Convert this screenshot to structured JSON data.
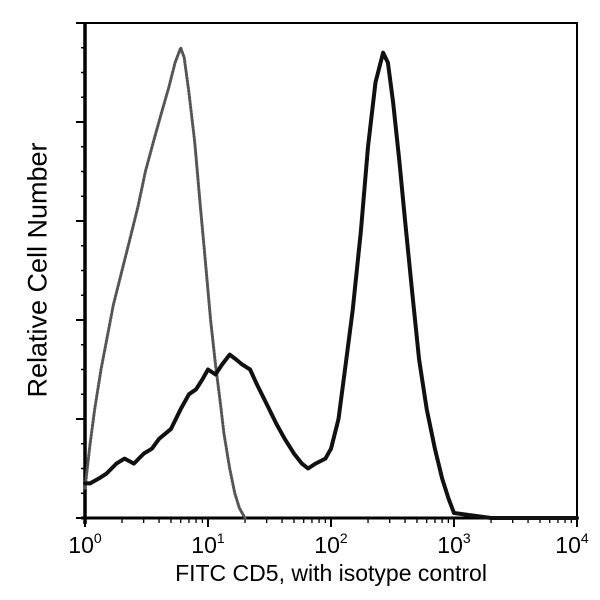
{
  "figure": {
    "ylabel": "Relative Cell Number",
    "xlabel": "FITC CD5, with isotype control",
    "x_ticks": [
      {
        "base": "10",
        "exp": "0"
      },
      {
        "base": "10",
        "exp": "1"
      },
      {
        "base": "10",
        "exp": "2"
      },
      {
        "base": "10",
        "exp": "3"
      },
      {
        "base": "10",
        "exp": "4"
      }
    ],
    "caption_cut": "",
    "colors": {
      "frame": "#000000",
      "cd5_curve": "#111111",
      "isotype_curve": "#555555",
      "background": "#ffffff"
    }
  },
  "chart_data": {
    "type": "line",
    "title": "",
    "xlabel": "FITC CD5, with isotype control",
    "ylabel": "Relative Cell Number",
    "xscale": "log",
    "xlim": [
      1,
      10000
    ],
    "ylim": [
      0,
      100
    ],
    "x_tick_labels": [
      "10^0",
      "10^1",
      "10^2",
      "10^3",
      "10^4"
    ],
    "y_tick_labels": [],
    "y_major_ticks": [
      0,
      20,
      40,
      60,
      80,
      100
    ],
    "grid": false,
    "legend": null,
    "series": [
      {
        "name": "Isotype control",
        "style": "dotted-gray",
        "x": [
          1.0,
          1.1,
          1.2,
          1.35,
          1.5,
          1.7,
          2.0,
          2.3,
          2.7,
          3.1,
          3.6,
          4.2,
          4.8,
          5.4,
          6.0,
          6.4,
          7.0,
          7.8,
          8.6,
          9.5,
          10.5,
          11.5,
          12.5,
          13.5,
          15.0,
          16.5,
          18.0,
          20.0
        ],
        "y": [
          6,
          15,
          22,
          30,
          36,
          43,
          50,
          56,
          63,
          70,
          76,
          82,
          87,
          92,
          95,
          93,
          86,
          76,
          64,
          52,
          40,
          31,
          24,
          17,
          10,
          5,
          2,
          0
        ]
      },
      {
        "name": "FITC CD5",
        "style": "solid-black",
        "x": [
          1.0,
          1.1,
          1.3,
          1.5,
          1.8,
          2.1,
          2.5,
          3.0,
          3.5,
          4.0,
          5.0,
          6.0,
          7.0,
          8.0,
          9.0,
          10.0,
          11.5,
          13.0,
          15.0,
          17.0,
          19.0,
          22.0,
          25.0,
          30.0,
          36.0,
          42.0,
          50.0,
          58.0,
          65.0,
          75.0,
          90.0,
          100.0,
          115.0,
          130.0,
          150.0,
          175.0,
          200.0,
          230.0,
          265.0,
          290.0,
          320.0,
          360.0,
          400.0,
          460.0,
          520.0,
          600.0,
          700.0,
          800.0,
          900.0,
          1000.0,
          2000.0,
          5000.0,
          10000.0
        ],
        "y": [
          7,
          7,
          8,
          9,
          11,
          12,
          11,
          13,
          14,
          16,
          18,
          22,
          25,
          26,
          28,
          30,
          29,
          31,
          33,
          32,
          31,
          30,
          27,
          23,
          19,
          16,
          13,
          11,
          10,
          11,
          12,
          14,
          20,
          30,
          42,
          58,
          75,
          88,
          94,
          92,
          84,
          72,
          60,
          45,
          32,
          22,
          14,
          8,
          4,
          1,
          0,
          0,
          0
        ]
      }
    ]
  }
}
